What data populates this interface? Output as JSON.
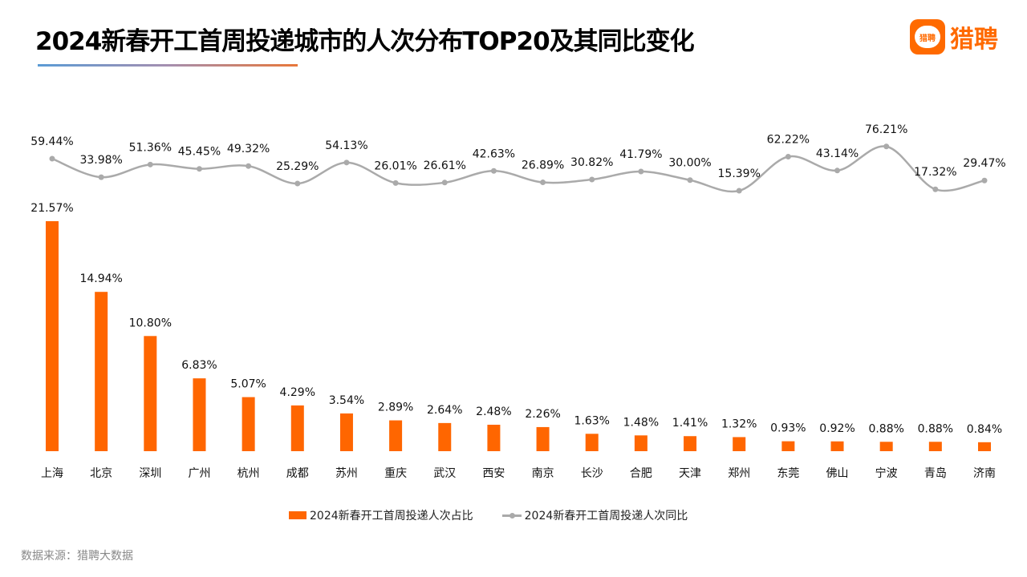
{
  "title": "2024新春开工首周投递城市的人次分布TOP20及其同比变化",
  "logo": {
    "badge_text": "猎聘",
    "text": "猎聘"
  },
  "source": "数据来源：猎聘大数据",
  "colors": {
    "bar": "#ff6600",
    "line": "#aaaaaa"
  },
  "chart_data": {
    "type": "bar+line",
    "title": "2024新春开工首周投递城市的人次分布TOP20及其同比变化",
    "categories": [
      "上海",
      "北京",
      "深圳",
      "广州",
      "杭州",
      "成都",
      "苏州",
      "重庆",
      "武汉",
      "西安",
      "南京",
      "长沙",
      "合肥",
      "天津",
      "郑州",
      "东莞",
      "佛山",
      "宁波",
      "青岛",
      "济南"
    ],
    "series": [
      {
        "name": "2024新春开工首周投递人次占比",
        "type": "bar",
        "values": [
          21.57,
          14.94,
          10.8,
          6.83,
          5.07,
          4.29,
          3.54,
          2.89,
          2.64,
          2.48,
          2.26,
          1.63,
          1.48,
          1.41,
          1.32,
          0.93,
          0.92,
          0.88,
          0.88,
          0.84
        ],
        "labels": [
          "21.57%",
          "14.94%",
          "10.80%",
          "6.83%",
          "5.07%",
          "4.29%",
          "3.54%",
          "2.89%",
          "2.64%",
          "2.48%",
          "2.26%",
          "1.63%",
          "1.48%",
          "1.41%",
          "1.32%",
          "0.93%",
          "0.92%",
          "0.88%",
          "0.88%",
          "0.84%"
        ]
      },
      {
        "name": "2024新春开工首周投递人次同比",
        "type": "line",
        "values": [
          59.44,
          33.98,
          51.36,
          45.45,
          49.32,
          25.29,
          54.13,
          26.01,
          26.61,
          42.63,
          26.89,
          30.82,
          41.79,
          30.0,
          15.39,
          62.22,
          43.14,
          76.21,
          17.32,
          29.47
        ],
        "labels": [
          "59.44%",
          "33.98%",
          "51.36%",
          "45.45%",
          "49.32%",
          "25.29%",
          "54.13%",
          "26.01%",
          "26.61%",
          "42.63%",
          "26.89%",
          "30.82%",
          "41.79%",
          "30.00%",
          "15.39%",
          "62.22%",
          "43.14%",
          "76.21%",
          "17.32%",
          "29.47%"
        ]
      }
    ],
    "legend": "bottom",
    "grid": false
  }
}
